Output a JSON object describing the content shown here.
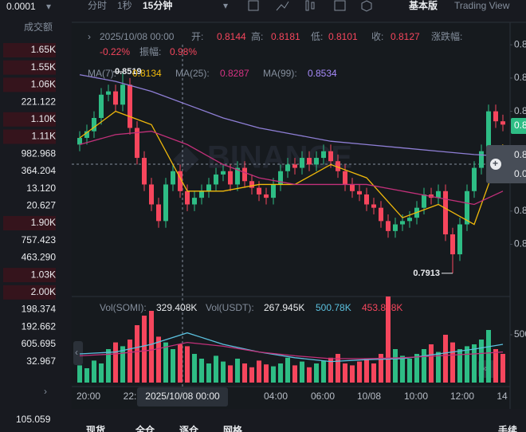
{
  "top_bar": {
    "precision": "0.0001",
    "intervals": [
      "分时",
      "1秒",
      "15分钟"
    ],
    "modes": [
      "基本版",
      "Trading View"
    ]
  },
  "left_panel": {
    "header": "成交额",
    "rows": [
      "1.65K",
      "1.55K",
      "1.06K",
      "221.122",
      "1.10K",
      "1.11K",
      "982.968",
      "364.204",
      "13.120",
      "20.627",
      "1.90K",
      "757.423",
      "463.290",
      "1.03K",
      "2.00K",
      "198.374",
      "192.662",
      "605.695",
      "32.967"
    ],
    "shaded": [
      0,
      1,
      2,
      4,
      5,
      10,
      13,
      14
    ],
    "footer": "105.059"
  },
  "chart": {
    "info": {
      "time": "2025/10/08 00:00",
      "open_label": "开:",
      "open": "0.8144",
      "high_label": "高:",
      "high": "0.8181",
      "low_label": "低:",
      "low": "0.8101",
      "close_label": "收:",
      "close": "0.8127",
      "change_label": "涨跌幅:",
      "change": "-0.22%",
      "amp_label": "振幅:",
      "amp": "0.98%"
    },
    "ma_legend": [
      {
        "label": "MA(7):",
        "value": "0.8134",
        "color": "#f0b90b"
      },
      {
        "label": "MA(25):",
        "value": "0.8287",
        "color": "#d63384"
      },
      {
        "label": "MA(99):",
        "value": "0.8534",
        "color": "#a78bfa"
      }
    ],
    "ylim": [
      0.78,
      0.86
    ],
    "yticks": [
      {
        "value": 0.86,
        "label": "0.8"
      },
      {
        "value": 0.85,
        "label": "0.8"
      },
      {
        "value": 0.84,
        "label": "0.8"
      },
      {
        "value": 0.81,
        "label": "0.8"
      },
      {
        "value": 0.8,
        "label": "0.8"
      }
    ],
    "price_tag": "0.8",
    "crosshair_box": [
      "0.8",
      "0.0"
    ],
    "high_marker": {
      "label": "0.8519",
      "candle": 6
    },
    "low_marker": {
      "label": "0.7913",
      "candle": 52
    },
    "up_color": "#2ebd85",
    "down_color": "#f6465d",
    "candles": [
      [
        0.83,
        0.834,
        0.828,
        0.832
      ],
      [
        0.832,
        0.836,
        0.83,
        0.834
      ],
      [
        0.834,
        0.84,
        0.832,
        0.838
      ],
      [
        0.838,
        0.847,
        0.836,
        0.845
      ],
      [
        0.845,
        0.848,
        0.843,
        0.846
      ],
      [
        0.846,
        0.848,
        0.84,
        0.842
      ],
      [
        0.842,
        0.8519,
        0.84,
        0.848
      ],
      [
        0.848,
        0.85,
        0.833,
        0.835
      ],
      [
        0.835,
        0.837,
        0.824,
        0.826
      ],
      [
        0.826,
        0.828,
        0.816,
        0.818
      ],
      [
        0.818,
        0.82,
        0.81,
        0.812
      ],
      [
        0.812,
        0.814,
        0.805,
        0.807
      ],
      [
        0.807,
        0.82,
        0.805,
        0.818
      ],
      [
        0.818,
        0.824,
        0.816,
        0.822
      ],
      [
        0.822,
        0.824,
        0.814,
        0.816
      ],
      [
        0.816,
        0.818,
        0.81,
        0.812
      ],
      [
        0.812,
        0.816,
        0.81,
        0.814
      ],
      [
        0.814,
        0.818,
        0.812,
        0.816
      ],
      [
        0.816,
        0.82,
        0.814,
        0.818
      ],
      [
        0.818,
        0.823,
        0.816,
        0.821
      ],
      [
        0.821,
        0.824,
        0.819,
        0.822
      ],
      [
        0.822,
        0.824,
        0.816,
        0.818
      ],
      [
        0.818,
        0.825,
        0.816,
        0.823
      ],
      [
        0.823,
        0.825,
        0.817,
        0.819
      ],
      [
        0.819,
        0.821,
        0.815,
        0.817
      ],
      [
        0.817,
        0.819,
        0.813,
        0.815
      ],
      [
        0.815,
        0.817,
        0.812,
        0.814
      ],
      [
        0.814,
        0.82,
        0.812,
        0.818
      ],
      [
        0.818,
        0.824,
        0.816,
        0.822
      ],
      [
        0.822,
        0.826,
        0.82,
        0.824
      ],
      [
        0.824,
        0.826,
        0.821,
        0.823
      ],
      [
        0.823,
        0.828,
        0.821,
        0.826
      ],
      [
        0.826,
        0.828,
        0.822,
        0.824
      ],
      [
        0.824,
        0.828,
        0.822,
        0.826
      ],
      [
        0.826,
        0.83,
        0.824,
        0.828
      ],
      [
        0.828,
        0.83,
        0.823,
        0.825
      ],
      [
        0.825,
        0.827,
        0.82,
        0.822
      ],
      [
        0.822,
        0.824,
        0.816,
        0.818
      ],
      [
        0.818,
        0.82,
        0.814,
        0.816
      ],
      [
        0.816,
        0.818,
        0.813,
        0.815
      ],
      [
        0.815,
        0.817,
        0.81,
        0.812
      ],
      [
        0.812,
        0.814,
        0.809,
        0.811
      ],
      [
        0.811,
        0.813,
        0.805,
        0.807
      ],
      [
        0.807,
        0.809,
        0.802,
        0.804
      ],
      [
        0.804,
        0.808,
        0.802,
        0.806
      ],
      [
        0.806,
        0.809,
        0.804,
        0.807
      ],
      [
        0.807,
        0.81,
        0.805,
        0.808
      ],
      [
        0.808,
        0.813,
        0.806,
        0.811
      ],
      [
        0.811,
        0.817,
        0.809,
        0.815
      ],
      [
        0.815,
        0.817,
        0.812,
        0.814
      ],
      [
        0.814,
        0.818,
        0.812,
        0.816
      ],
      [
        0.816,
        0.818,
        0.801,
        0.803
      ],
      [
        0.803,
        0.805,
        0.7913,
        0.797
      ],
      [
        0.797,
        0.808,
        0.795,
        0.806
      ],
      [
        0.806,
        0.818,
        0.804,
        0.816
      ],
      [
        0.816,
        0.825,
        0.814,
        0.823
      ],
      [
        0.823,
        0.83,
        0.821,
        0.828
      ],
      [
        0.828,
        0.842,
        0.826,
        0.84
      ],
      [
        0.84,
        0.842,
        0.835,
        0.837
      ],
      [
        0.837,
        0.839,
        0.834,
        0.836
      ]
    ],
    "ma_lines": [
      {
        "color": "#f0b90b",
        "index": [
          0,
          5,
          10,
          15,
          20,
          25,
          30,
          35,
          40,
          45,
          50,
          55,
          59
        ],
        "values": [
          0.832,
          0.84,
          0.836,
          0.816,
          0.816,
          0.818,
          0.818,
          0.824,
          0.82,
          0.808,
          0.812,
          0.806,
          0.83
        ]
      },
      {
        "color": "#c2307a",
        "index": [
          0,
          5,
          10,
          15,
          20,
          25,
          30,
          35,
          40,
          45,
          50,
          55,
          59
        ],
        "values": [
          0.83,
          0.833,
          0.834,
          0.83,
          0.824,
          0.82,
          0.818,
          0.818,
          0.818,
          0.816,
          0.814,
          0.812,
          0.816
        ]
      },
      {
        "color": "#8f7fd6",
        "index": [
          0,
          5,
          10,
          15,
          20,
          25,
          30,
          35,
          40,
          45,
          50,
          55,
          59
        ],
        "values": [
          0.851,
          0.849,
          0.846,
          0.842,
          0.838,
          0.835,
          0.833,
          0.831,
          0.83,
          0.829,
          0.828,
          0.827,
          0.8265
        ]
      }
    ],
    "volume": {
      "legend": [
        {
          "label": "Vol(SOMI):",
          "value": "329.408K",
          "color": "#eaecef"
        },
        {
          "label": "Vol(USDT):",
          "value": "267.945K",
          "color": "#eaecef"
        },
        {
          "label": "",
          "value": "500.78K",
          "color": "#5bc0de"
        },
        {
          "label": "",
          "value": "453.898K",
          "color": "#f6465d"
        }
      ],
      "ylim": [
        0,
        1000
      ],
      "yticks": [
        {
          "value": 500,
          "label": "500"
        }
      ],
      "values": [
        180,
        150,
        230,
        200,
        350,
        420,
        380,
        450,
        600,
        700,
        750,
        480,
        420,
        350,
        400,
        380,
        300,
        250,
        200,
        280,
        220,
        180,
        250,
        200,
        160,
        230,
        190,
        170,
        200,
        260,
        180,
        220,
        160,
        200,
        230,
        260,
        300,
        200,
        180,
        220,
        250,
        200,
        300,
        900,
        350,
        280,
        250,
        300,
        350,
        400,
        320,
        500,
        420,
        350,
        380,
        400,
        450,
        550,
        350,
        300
      ],
      "ma_lines": [
        {
          "color": "#5bc0de",
          "index": [
            0,
            5,
            10,
            15,
            20,
            25,
            30,
            35,
            40,
            45,
            50,
            55,
            59
          ],
          "values": [
            300,
            320,
            400,
            520,
            400,
            320,
            260,
            220,
            240,
            250,
            300,
            350,
            400
          ]
        },
        {
          "color": "#c2307a",
          "index": [
            0,
            5,
            10,
            15,
            20,
            25,
            30,
            35,
            40,
            45,
            50,
            55,
            59
          ],
          "values": [
            280,
            300,
            340,
            420,
            380,
            320,
            280,
            250,
            250,
            260,
            280,
            300,
            320
          ]
        }
      ]
    },
    "time_labels": [
      "20:00",
      "22:",
      "04:00",
      "06:00",
      "10/08",
      "10:00",
      "12:00",
      "14"
    ],
    "crosshair_time": "2025/10/08 00:00"
  },
  "bottom_tabs": [
    "现货",
    "全仓",
    "逐仓",
    "网格",
    "手续"
  ]
}
